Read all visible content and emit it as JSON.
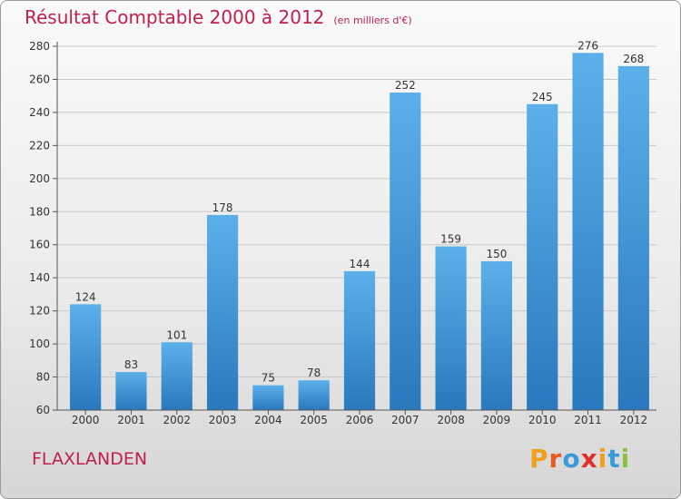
{
  "chart_data": {
    "type": "bar",
    "title": "Résultat Comptable 2000 à 2012",
    "subtitle": "(en milliers d'€)",
    "categories": [
      "2000",
      "2001",
      "2002",
      "2003",
      "2004",
      "2005",
      "2006",
      "2007",
      "2008",
      "2009",
      "2010",
      "2011",
      "2012"
    ],
    "values": [
      124,
      83,
      101,
      178,
      75,
      78,
      144,
      252,
      159,
      150,
      245,
      276,
      268
    ],
    "ylim": [
      60,
      280
    ],
    "yticks": [
      60,
      80,
      100,
      120,
      140,
      160,
      180,
      200,
      220,
      240,
      260,
      280
    ],
    "grid": true,
    "legend": "none",
    "bar_color": "#3a95d8"
  },
  "footer": {
    "commune": "FLAXLANDEN",
    "logo_text": "Proxiti"
  },
  "colors": {
    "title": "#c0204a",
    "logo": [
      "#f0a01e",
      "#e85a1e",
      "#3a9ad9",
      "#e0302e",
      "#f0a01e",
      "#3a9ad9",
      "#8ac240"
    ]
  }
}
